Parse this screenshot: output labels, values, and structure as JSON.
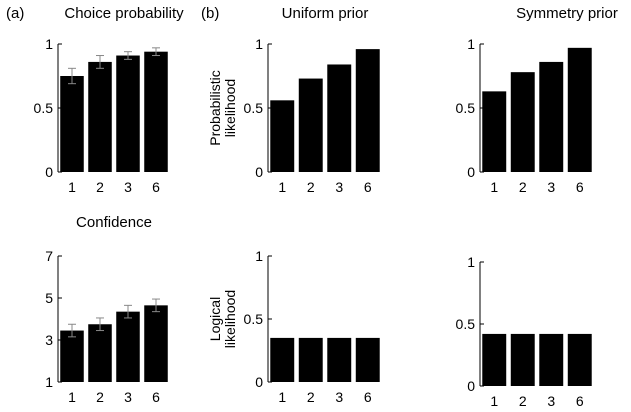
{
  "panel_labels": {
    "a": "(a)",
    "b": "(b)"
  },
  "chart_data": [
    {
      "id": "choice",
      "type": "bar",
      "title": "Choice probability",
      "ylabel": "",
      "categories": [
        "1",
        "2",
        "3",
        "6"
      ],
      "values": [
        0.75,
        0.86,
        0.91,
        0.94
      ],
      "errors": [
        0.06,
        0.05,
        0.03,
        0.03
      ],
      "ylim": [
        0,
        1
      ],
      "yticks": [
        0,
        0.5,
        1
      ],
      "ytick_labels": [
        "0",
        "0.5",
        "1"
      ],
      "bar_color": "#000000"
    },
    {
      "id": "uniform_prob",
      "type": "bar",
      "title": "Uniform prior",
      "ylabel": "Probabilistic likelihood",
      "ylabel_lines": [
        "Probabilistic",
        "likelihood"
      ],
      "categories": [
        "1",
        "2",
        "3",
        "6"
      ],
      "values": [
        0.56,
        0.73,
        0.84,
        0.96
      ],
      "ylim": [
        0,
        1
      ],
      "yticks": [
        0,
        0.5,
        1
      ],
      "ytick_labels": [
        "0",
        "0.5",
        "1"
      ],
      "bar_color": "#000000"
    },
    {
      "id": "symmetry_prob",
      "type": "bar",
      "title": "Symmetry prior",
      "ylabel": "",
      "categories": [
        "1",
        "2",
        "3",
        "6"
      ],
      "values": [
        0.63,
        0.78,
        0.86,
        0.97
      ],
      "ylim": [
        0,
        1
      ],
      "yticks": [
        0,
        0.5,
        1
      ],
      "ytick_labels": [
        "0",
        "0.5",
        "1"
      ],
      "bar_color": "#000000"
    },
    {
      "id": "confidence",
      "type": "bar",
      "title": "Confidence",
      "ylabel": "",
      "categories": [
        "1",
        "2",
        "3",
        "6"
      ],
      "values": [
        3.45,
        3.75,
        4.35,
        4.65
      ],
      "errors": [
        0.3,
        0.3,
        0.3,
        0.3
      ],
      "ylim": [
        1,
        7
      ],
      "yticks": [
        1,
        3,
        5,
        7
      ],
      "ytick_labels": [
        "1",
        "3",
        "5",
        "7"
      ],
      "bar_color": "#000000"
    },
    {
      "id": "uniform_logic",
      "type": "bar",
      "title": "",
      "ylabel": "Logical likelihood",
      "ylabel_lines": [
        "Logical",
        "likelihood"
      ],
      "categories": [
        "1",
        "2",
        "3",
        "6"
      ],
      "values": [
        0.35,
        0.35,
        0.35,
        0.35
      ],
      "ylim": [
        0,
        1
      ],
      "yticks": [
        0,
        0.5,
        1
      ],
      "ytick_labels": [
        "0",
        "0.5",
        "1"
      ],
      "bar_color": "#000000"
    },
    {
      "id": "symmetry_logic",
      "type": "bar",
      "title": "",
      "ylabel": "",
      "categories": [
        "1",
        "2",
        "3",
        "6"
      ],
      "values": [
        0.42,
        0.42,
        0.42,
        0.42
      ],
      "ylim": [
        0,
        1
      ],
      "yticks": [
        0,
        0.5,
        1
      ],
      "ytick_labels": [
        "0",
        "0.5",
        "1"
      ],
      "bar_color": "#000000"
    }
  ]
}
